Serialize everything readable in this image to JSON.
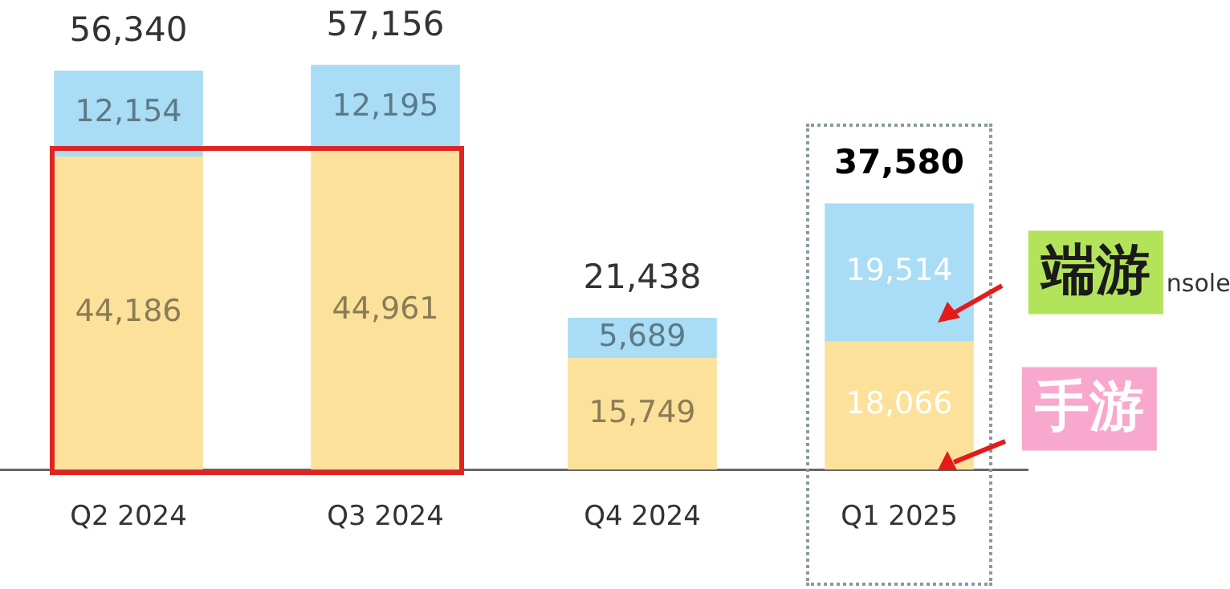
{
  "chart_data": {
    "type": "bar",
    "stacked": true,
    "categories": [
      "Q2 2024",
      "Q3 2024",
      "Q4 2024",
      "Q1 2025"
    ],
    "series": [
      {
        "name": "手游",
        "color": "#fbe19a",
        "values": [
          44186,
          44961,
          15749,
          18066
        ],
        "value_labels": [
          "44,186",
          "44,961",
          "15,749",
          "18,066"
        ]
      },
      {
        "name": "端游",
        "color": "#a9dcf5",
        "values": [
          12154,
          12195,
          5689,
          19514
        ],
        "value_labels": [
          "12,154",
          "12,195",
          "5,689",
          "19,514"
        ]
      }
    ],
    "totals": [
      "56,340",
      "57,156",
      "21,438",
      "37,580"
    ],
    "grid": false,
    "legend": false,
    "tick_labels": "x",
    "annotations": [
      "nsole"
    ]
  }
}
